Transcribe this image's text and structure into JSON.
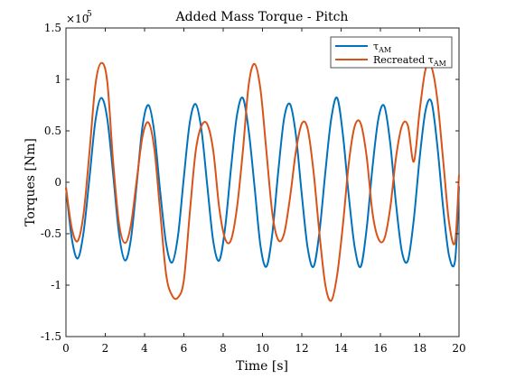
{
  "chart_data": {
    "type": "line",
    "title": "Added Mass Torque - Pitch",
    "xlabel": "Time [s]",
    "ylabel": "Torques [Nm]",
    "y_multiplier_label": "×10",
    "y_multiplier_exponent": "5",
    "xlim": [
      0,
      20
    ],
    "ylim": [
      -1.5,
      1.5
    ],
    "xticks": [
      0,
      2,
      4,
      6,
      8,
      10,
      12,
      14,
      16,
      18,
      20
    ],
    "xtick_labels": [
      "0",
      "2",
      "4",
      "6",
      "8",
      "10",
      "12",
      "14",
      "16",
      "18",
      "20"
    ],
    "yticks": [
      -1.5,
      -1,
      -0.5,
      0,
      0.5,
      1,
      1.5
    ],
    "ytick_labels": [
      "-1.5",
      "-1",
      "-0.5",
      "0",
      "0.5",
      "1",
      "1.5"
    ],
    "grid": false,
    "legend_position": "top-right",
    "series": [
      {
        "name": "τ",
        "name_subscript": "AM",
        "color": "#0072BD",
        "x": [
          0,
          0.3,
          0.6,
          0.9,
          1.2,
          1.5,
          1.8,
          2.1,
          2.4,
          2.7,
          3.0,
          3.3,
          3.6,
          3.9,
          4.2,
          4.5,
          4.8,
          5.1,
          5.4,
          5.7,
          6.0,
          6.3,
          6.6,
          6.9,
          7.2,
          7.5,
          7.8,
          8.1,
          8.4,
          8.7,
          9.0,
          9.3,
          9.6,
          9.9,
          10.2,
          10.5,
          10.8,
          11.1,
          11.4,
          11.7,
          12.0,
          12.3,
          12.6,
          12.9,
          13.2,
          13.5,
          13.8,
          14.1,
          14.4,
          14.7,
          15.0,
          15.3,
          15.6,
          15.9,
          16.2,
          16.5,
          16.8,
          17.1,
          17.4,
          17.7,
          18.0,
          18.3,
          18.6,
          18.9,
          19.2,
          19.5,
          19.8,
          20.0
        ],
        "y": [
          -0.05,
          -0.55,
          -0.74,
          -0.48,
          0.05,
          0.6,
          0.82,
          0.62,
          0.08,
          -0.5,
          -0.76,
          -0.56,
          -0.02,
          0.55,
          0.75,
          0.48,
          -0.1,
          -0.6,
          -0.78,
          -0.52,
          0.05,
          0.58,
          0.76,
          0.5,
          -0.05,
          -0.58,
          -0.76,
          -0.44,
          0.14,
          0.65,
          0.82,
          0.5,
          -0.05,
          -0.62,
          -0.82,
          -0.5,
          0.1,
          0.62,
          0.76,
          0.46,
          -0.12,
          -0.64,
          -0.82,
          -0.48,
          0.1,
          0.62,
          0.82,
          0.45,
          -0.15,
          -0.64,
          -0.82,
          -0.45,
          0.15,
          0.62,
          0.74,
          0.38,
          -0.22,
          -0.68,
          -0.76,
          -0.36,
          0.24,
          0.7,
          0.78,
          0.35,
          -0.26,
          -0.72,
          -0.76,
          -0.04
        ]
      },
      {
        "name": "Recreated τ",
        "name_subscript": "AM",
        "color": "#D95319",
        "x": [
          0,
          0.3,
          0.6,
          0.9,
          1.2,
          1.5,
          1.8,
          2.1,
          2.4,
          2.7,
          3.0,
          3.3,
          3.6,
          3.9,
          4.2,
          4.5,
          4.8,
          5.1,
          5.4,
          5.7,
          6.0,
          6.3,
          6.6,
          6.9,
          7.2,
          7.5,
          7.8,
          8.1,
          8.4,
          8.7,
          9.0,
          9.3,
          9.6,
          9.9,
          10.2,
          10.5,
          10.8,
          11.1,
          11.4,
          11.7,
          12.0,
          12.3,
          12.6,
          12.9,
          13.2,
          13.5,
          13.8,
          14.1,
          14.4,
          14.7,
          15.0,
          15.3,
          15.6,
          15.9,
          16.2,
          16.5,
          16.8,
          17.1,
          17.4,
          17.7,
          18.0,
          18.3,
          18.6,
          18.9,
          19.2,
          19.5,
          19.8,
          20.0
        ],
        "y": [
          -0.05,
          -0.45,
          -0.57,
          -0.3,
          0.3,
          0.95,
          1.16,
          0.98,
          0.2,
          -0.4,
          -0.59,
          -0.42,
          0.02,
          0.45,
          0.58,
          0.32,
          -0.3,
          -0.9,
          -1.1,
          -1.12,
          -0.95,
          -0.3,
          0.3,
          0.55,
          0.56,
          0.3,
          -0.25,
          -0.55,
          -0.56,
          -0.25,
          0.3,
          0.95,
          1.15,
          0.9,
          0.3,
          -0.3,
          -0.56,
          -0.5,
          -0.15,
          0.3,
          0.57,
          0.52,
          0.1,
          -0.5,
          -1.0,
          -1.15,
          -0.9,
          -0.4,
          0.2,
          0.55,
          0.57,
          0.25,
          -0.3,
          -0.55,
          -0.55,
          -0.25,
          0.25,
          0.55,
          0.55,
          0.2,
          0.7,
          1.1,
          1.12,
          0.8,
          0.2,
          -0.4,
          -0.58,
          0.07
        ]
      }
    ]
  }
}
